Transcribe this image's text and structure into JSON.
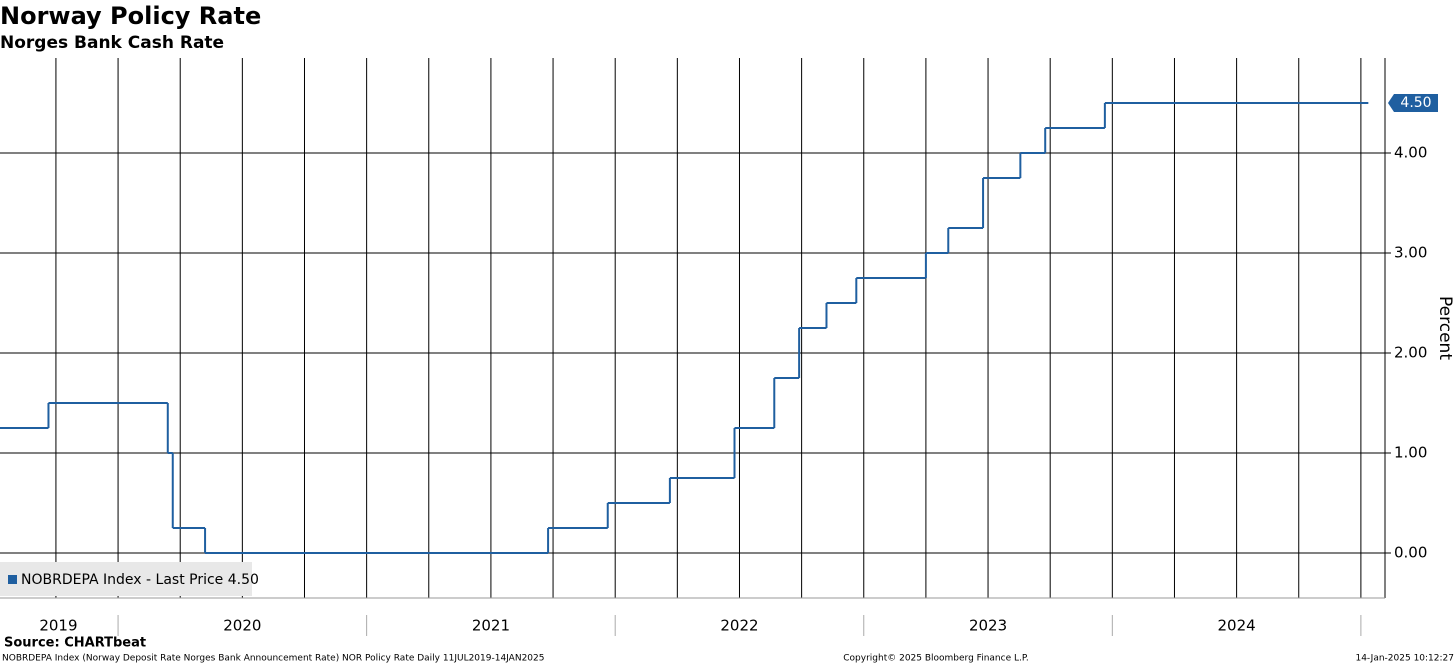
{
  "chart_data": {
    "type": "step",
    "title": "Norway Policy Rate",
    "subtitle": "Norges Bank Cash Rate",
    "y_label": "Percent",
    "legend_label": "NOBRDEPA Index - Last Price 4.50",
    "source": "Source: CHARTbeat",
    "footer_left": "NOBRDEPA Index (Norway Deposit Rate Norges Bank Announcement Rate) NOR Policy Rate  Daily 11JUL2019-14JAN2025",
    "footer_center": "Copyright© 2025 Bloomberg Finance L.P.",
    "footer_right": "14-Jan-2025 10:12:27",
    "last_value_label": {
      "value": 4.5,
      "label": "4.50"
    },
    "color": "#1f5fa0",
    "grid": true,
    "x": [
      2019.525,
      2019.72,
      2020.2,
      2020.22,
      2020.35,
      2021.73,
      2021.97,
      2022.22,
      2022.48,
      2022.64,
      2022.74,
      2022.85,
      2022.97,
      2023.25,
      2023.34,
      2023.48,
      2023.63,
      2023.73,
      2023.97,
      2025.03
    ],
    "values": [
      1.25,
      1.5,
      1.0,
      0.25,
      0,
      0.25,
      0.5,
      0.75,
      1.25,
      1.75,
      2.25,
      2.5,
      2.75,
      3.0,
      3.25,
      3.75,
      4.0,
      4.25,
      4.5,
      4.5
    ],
    "xlim": [
      2019.525,
      2025.097
    ],
    "ylim": [
      -0.45,
      4.95
    ],
    "yticks": [
      {
        "value": 0,
        "label": "0.00"
      },
      {
        "value": 1,
        "label": "1.00"
      },
      {
        "value": 2,
        "label": "2.00"
      },
      {
        "value": 3,
        "label": "3.00"
      },
      {
        "value": 4,
        "label": "4.00"
      }
    ],
    "xticks": [
      {
        "value": 2019.76,
        "label": "2019"
      },
      {
        "value": 2020.5,
        "label": "2020"
      },
      {
        "value": 2021.5,
        "label": "2021"
      },
      {
        "value": 2022.5,
        "label": "2022"
      },
      {
        "value": 2023.5,
        "label": "2023"
      },
      {
        "value": 2024.5,
        "label": "2024"
      }
    ],
    "year_boundaries": [
      2020,
      2021,
      2022,
      2023,
      2024,
      2025
    ],
    "minor_xticks": [
      2019.75,
      2020,
      2020.25,
      2020.5,
      2020.75,
      2021,
      2021.25,
      2021.5,
      2021.75,
      2022,
      2022.25,
      2022.5,
      2022.75,
      2023,
      2023.25,
      2023.5,
      2023.75,
      2024,
      2024.25,
      2024.5,
      2024.75,
      2025
    ]
  }
}
